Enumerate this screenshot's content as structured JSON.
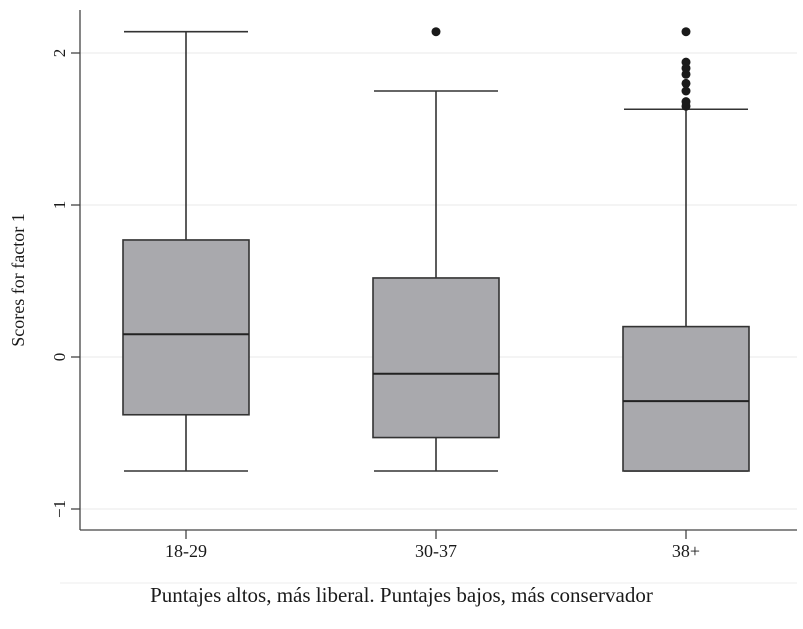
{
  "chart_data": {
    "type": "box",
    "title": "",
    "xlabel": "",
    "ylabel": "Scores for factor 1",
    "ylim": [
      -1.2,
      2.3
    ],
    "yticks": [
      -1,
      0,
      1,
      2
    ],
    "ytick_labels": [
      "−1",
      "0",
      "1",
      "2"
    ],
    "grid": true,
    "categories": [
      "18-29",
      "30-37",
      "38+"
    ],
    "boxes": [
      {
        "category": "18-29",
        "whisker_low": -0.75,
        "q1": -0.38,
        "median": 0.15,
        "q3": 0.77,
        "whisker_high": 2.14,
        "outliers": []
      },
      {
        "category": "30-37",
        "whisker_low": -0.75,
        "q1": -0.53,
        "median": -0.11,
        "q3": 0.52,
        "whisker_high": 1.75,
        "outliers": [
          2.14
        ]
      },
      {
        "category": "38+",
        "whisker_low": -0.75,
        "q1": -0.75,
        "median": -0.29,
        "q3": 0.2,
        "whisker_high": 1.63,
        "outliers": [
          1.65,
          1.68,
          1.75,
          1.8,
          1.86,
          1.9,
          1.94,
          2.14
        ]
      }
    ],
    "colors": {
      "box_fill": "#a9a9ad",
      "box_stroke": "#333333",
      "outlier": "#1a1a1a",
      "grid": "#e8e8e8",
      "axis": "#444444"
    }
  },
  "caption": "Puntajes altos, más liberal. Puntajes bajos, más conservador"
}
